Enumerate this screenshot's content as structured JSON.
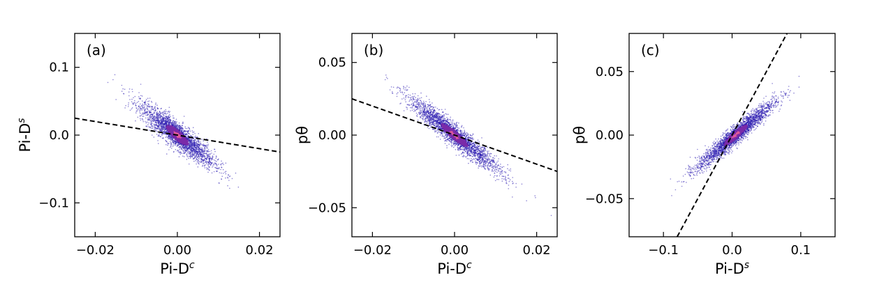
{
  "chart_data": [
    {
      "type": "scatter",
      "panel_label": "(a)",
      "xlabel_base": "Pi-D",
      "xlabel_sup": "c",
      "ylabel_base": "Pi-D",
      "ylabel_sup": "s",
      "xlim": [
        -0.025,
        0.025
      ],
      "ylim": [
        -0.15,
        0.15
      ],
      "xticks": [
        -0.02,
        0.0,
        0.02
      ],
      "xtick_labels": [
        "−0.02",
        "0.00",
        "0.02"
      ],
      "yticks": [
        -0.1,
        0.0,
        0.1
      ],
      "ytick_labels": [
        "−0.1",
        "0.0",
        "0.1"
      ],
      "fit_line": {
        "x": [
          -0.025,
          0.025
        ],
        "y": [
          0.025,
          -0.025
        ]
      },
      "cloud": {
        "center": [
          0.0,
          0.0
        ],
        "major_axis_slope": -4.5,
        "x_spread": 0.0045,
        "y_spread": 0.028,
        "count": 2600
      },
      "grid": false,
      "legend": "none"
    },
    {
      "type": "scatter",
      "panel_label": "(b)",
      "xlabel_base": "Pi-D",
      "xlabel_sup": "c",
      "ylabel_base": "pθ",
      "ylabel_sup": "",
      "xlim": [
        -0.025,
        0.025
      ],
      "ylim": [
        -0.07,
        0.07
      ],
      "xticks": [
        -0.02,
        0.0,
        0.02
      ],
      "xtick_labels": [
        "−0.02",
        "0.00",
        "0.02"
      ],
      "yticks": [
        -0.05,
        0.0,
        0.05
      ],
      "ytick_labels": [
        "−0.05",
        "0.00",
        "0.05"
      ],
      "fit_line": {
        "x": [
          -0.025,
          0.025
        ],
        "y": [
          0.025,
          -0.025
        ]
      },
      "cloud": {
        "center": [
          0.0,
          0.0
        ],
        "major_axis_slope": -2.2,
        "x_spread": 0.0055,
        "y_spread": 0.011,
        "count": 2600
      },
      "grid": false,
      "legend": "none"
    },
    {
      "type": "scatter",
      "panel_label": "(c)",
      "xlabel_base": "Pi-D",
      "xlabel_sup": "s",
      "ylabel_base": "pθ",
      "ylabel_sup": "",
      "xlim": [
        -0.15,
        0.15
      ],
      "ylim": [
        -0.08,
        0.08
      ],
      "xticks": [
        -0.1,
        0.0,
        0.1
      ],
      "xtick_labels": [
        "−0.1",
        "0.0",
        "0.1"
      ],
      "yticks": [
        -0.05,
        0.0,
        0.05
      ],
      "ytick_labels": [
        "−0.05",
        "0.00",
        "0.05"
      ],
      "fit_line": {
        "x": [
          -0.08,
          0.08
        ],
        "y": [
          -0.08,
          0.08
        ]
      },
      "cloud": {
        "center": [
          0.005,
          0.0
        ],
        "major_axis_slope": 0.45,
        "x_spread": 0.028,
        "y_spread": 0.011,
        "count": 2600
      },
      "grid": false,
      "legend": "none"
    }
  ],
  "colors": {
    "point_low": "#2b1cb0",
    "point_mid": "#7a2ba8",
    "point_high": "#e05a9a",
    "fit_line": "#000000",
    "axes": "#000000"
  }
}
